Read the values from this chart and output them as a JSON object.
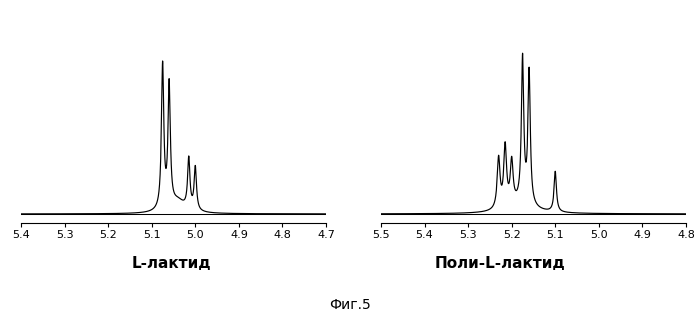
{
  "left_spectrum": {
    "xmin": 4.7,
    "xmax": 5.4,
    "xticks": [
      5.4,
      5.3,
      5.2,
      5.1,
      5.0,
      4.9,
      4.8,
      4.7
    ],
    "label": "L-лактид"
  },
  "right_spectrum": {
    "xmin": 4.8,
    "xmax": 5.5,
    "xticks": [
      5.5,
      5.4,
      5.3,
      5.2,
      5.1,
      5.0,
      4.9,
      4.8
    ],
    "label": "Поли-L-лактид"
  },
  "fig_label": "Фиг.5",
  "line_color": "#000000",
  "label_fontsize": 11,
  "figlabel_fontsize": 10
}
